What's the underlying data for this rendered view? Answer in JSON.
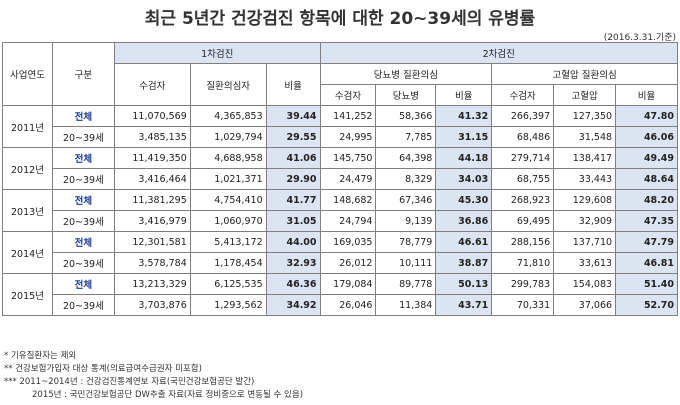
{
  "title": "최근 5년간 건강검진 항목에 대한 20~39세의 유병률",
  "date_note": "(2016.3.31.기준)",
  "headers": {
    "year": "사업연도",
    "group": "구분",
    "first": "1차검진",
    "second": "2차검진",
    "diabetes": "당뇨병 질환의심",
    "hypertension": "고혈압 질환의심",
    "examinees": "수검자",
    "suspected": "질환의심자",
    "rate": "비율",
    "diabetes_col": "당뇨병",
    "hypertension_col": "고혈압"
  },
  "rows": [
    {
      "year": "2011년",
      "group": "전체",
      "a": "11,070,569",
      "b": "4,365,853",
      "r1": "39.44",
      "c": "141,252",
      "d": "58,366",
      "r2": "41.32",
      "e": "266,397",
      "f": "127,350",
      "r3": "47.80"
    },
    {
      "year": "",
      "group": "20~39세",
      "a": "3,485,135",
      "b": "1,029,794",
      "r1": "29.55",
      "c": "24,995",
      "d": "7,785",
      "r2": "31.15",
      "e": "68,486",
      "f": "31,548",
      "r3": "46.06"
    },
    {
      "year": "2012년",
      "group": "전체",
      "a": "11,419,350",
      "b": "4,688,958",
      "r1": "41.06",
      "c": "145,750",
      "d": "64,398",
      "r2": "44.18",
      "e": "279,714",
      "f": "138,417",
      "r3": "49.49"
    },
    {
      "year": "",
      "group": "20~39세",
      "a": "3,416,464",
      "b": "1,021,371",
      "r1": "29.90",
      "c": "24,479",
      "d": "8,329",
      "r2": "34.03",
      "e": "68,755",
      "f": "33,443",
      "r3": "48.64"
    },
    {
      "year": "2013년",
      "group": "전체",
      "a": "11,381,295",
      "b": "4,754,410",
      "r1": "41.77",
      "c": "148,682",
      "d": "67,346",
      "r2": "45.30",
      "e": "268,923",
      "f": "129,608",
      "r3": "48.20"
    },
    {
      "year": "",
      "group": "20~39세",
      "a": "3,416,979",
      "b": "1,060,970",
      "r1": "31.05",
      "c": "24,794",
      "d": "9,139",
      "r2": "36.86",
      "e": "69,495",
      "f": "32,909",
      "r3": "47.35"
    },
    {
      "year": "2014년",
      "group": "전체",
      "a": "12,301,581",
      "b": "5,413,172",
      "r1": "44.00",
      "c": "169,035",
      "d": "78,779",
      "r2": "46.61",
      "e": "288,156",
      "f": "137,710",
      "r3": "47.79"
    },
    {
      "year": "",
      "group": "20~39세",
      "a": "3,578,784",
      "b": "1,178,454",
      "r1": "32.93",
      "c": "26,012",
      "d": "10,111",
      "r2": "38.87",
      "e": "71,810",
      "f": "33,613",
      "r3": "46.81"
    },
    {
      "year": "2015년",
      "group": "전체",
      "a": "13,213,329",
      "b": "6,125,535",
      "r1": "46.36",
      "c": "179,084",
      "d": "89,778",
      "r2": "50.13",
      "e": "299,783",
      "f": "154,083",
      "r3": "51.40"
    },
    {
      "year": "",
      "group": "20~39세",
      "a": "3,703,876",
      "b": "1,293,562",
      "r1": "34.92",
      "c": "26,046",
      "d": "11,384",
      "r2": "43.71",
      "e": "70,331",
      "f": "37,066",
      "r3": "52.70"
    }
  ],
  "notes": [
    "* 기유질환자는 제외",
    "** 건강보험가입자 대상 통계(의료급여수급권자 미포함)",
    "*** 2011~2014년 : 건강검진통계연보 자료(국민건강보험공단 발간)",
    "2015년 : 국민건강보험공단 DW추출 자료(자료 정비중으로 변동될 수 있음)"
  ]
}
